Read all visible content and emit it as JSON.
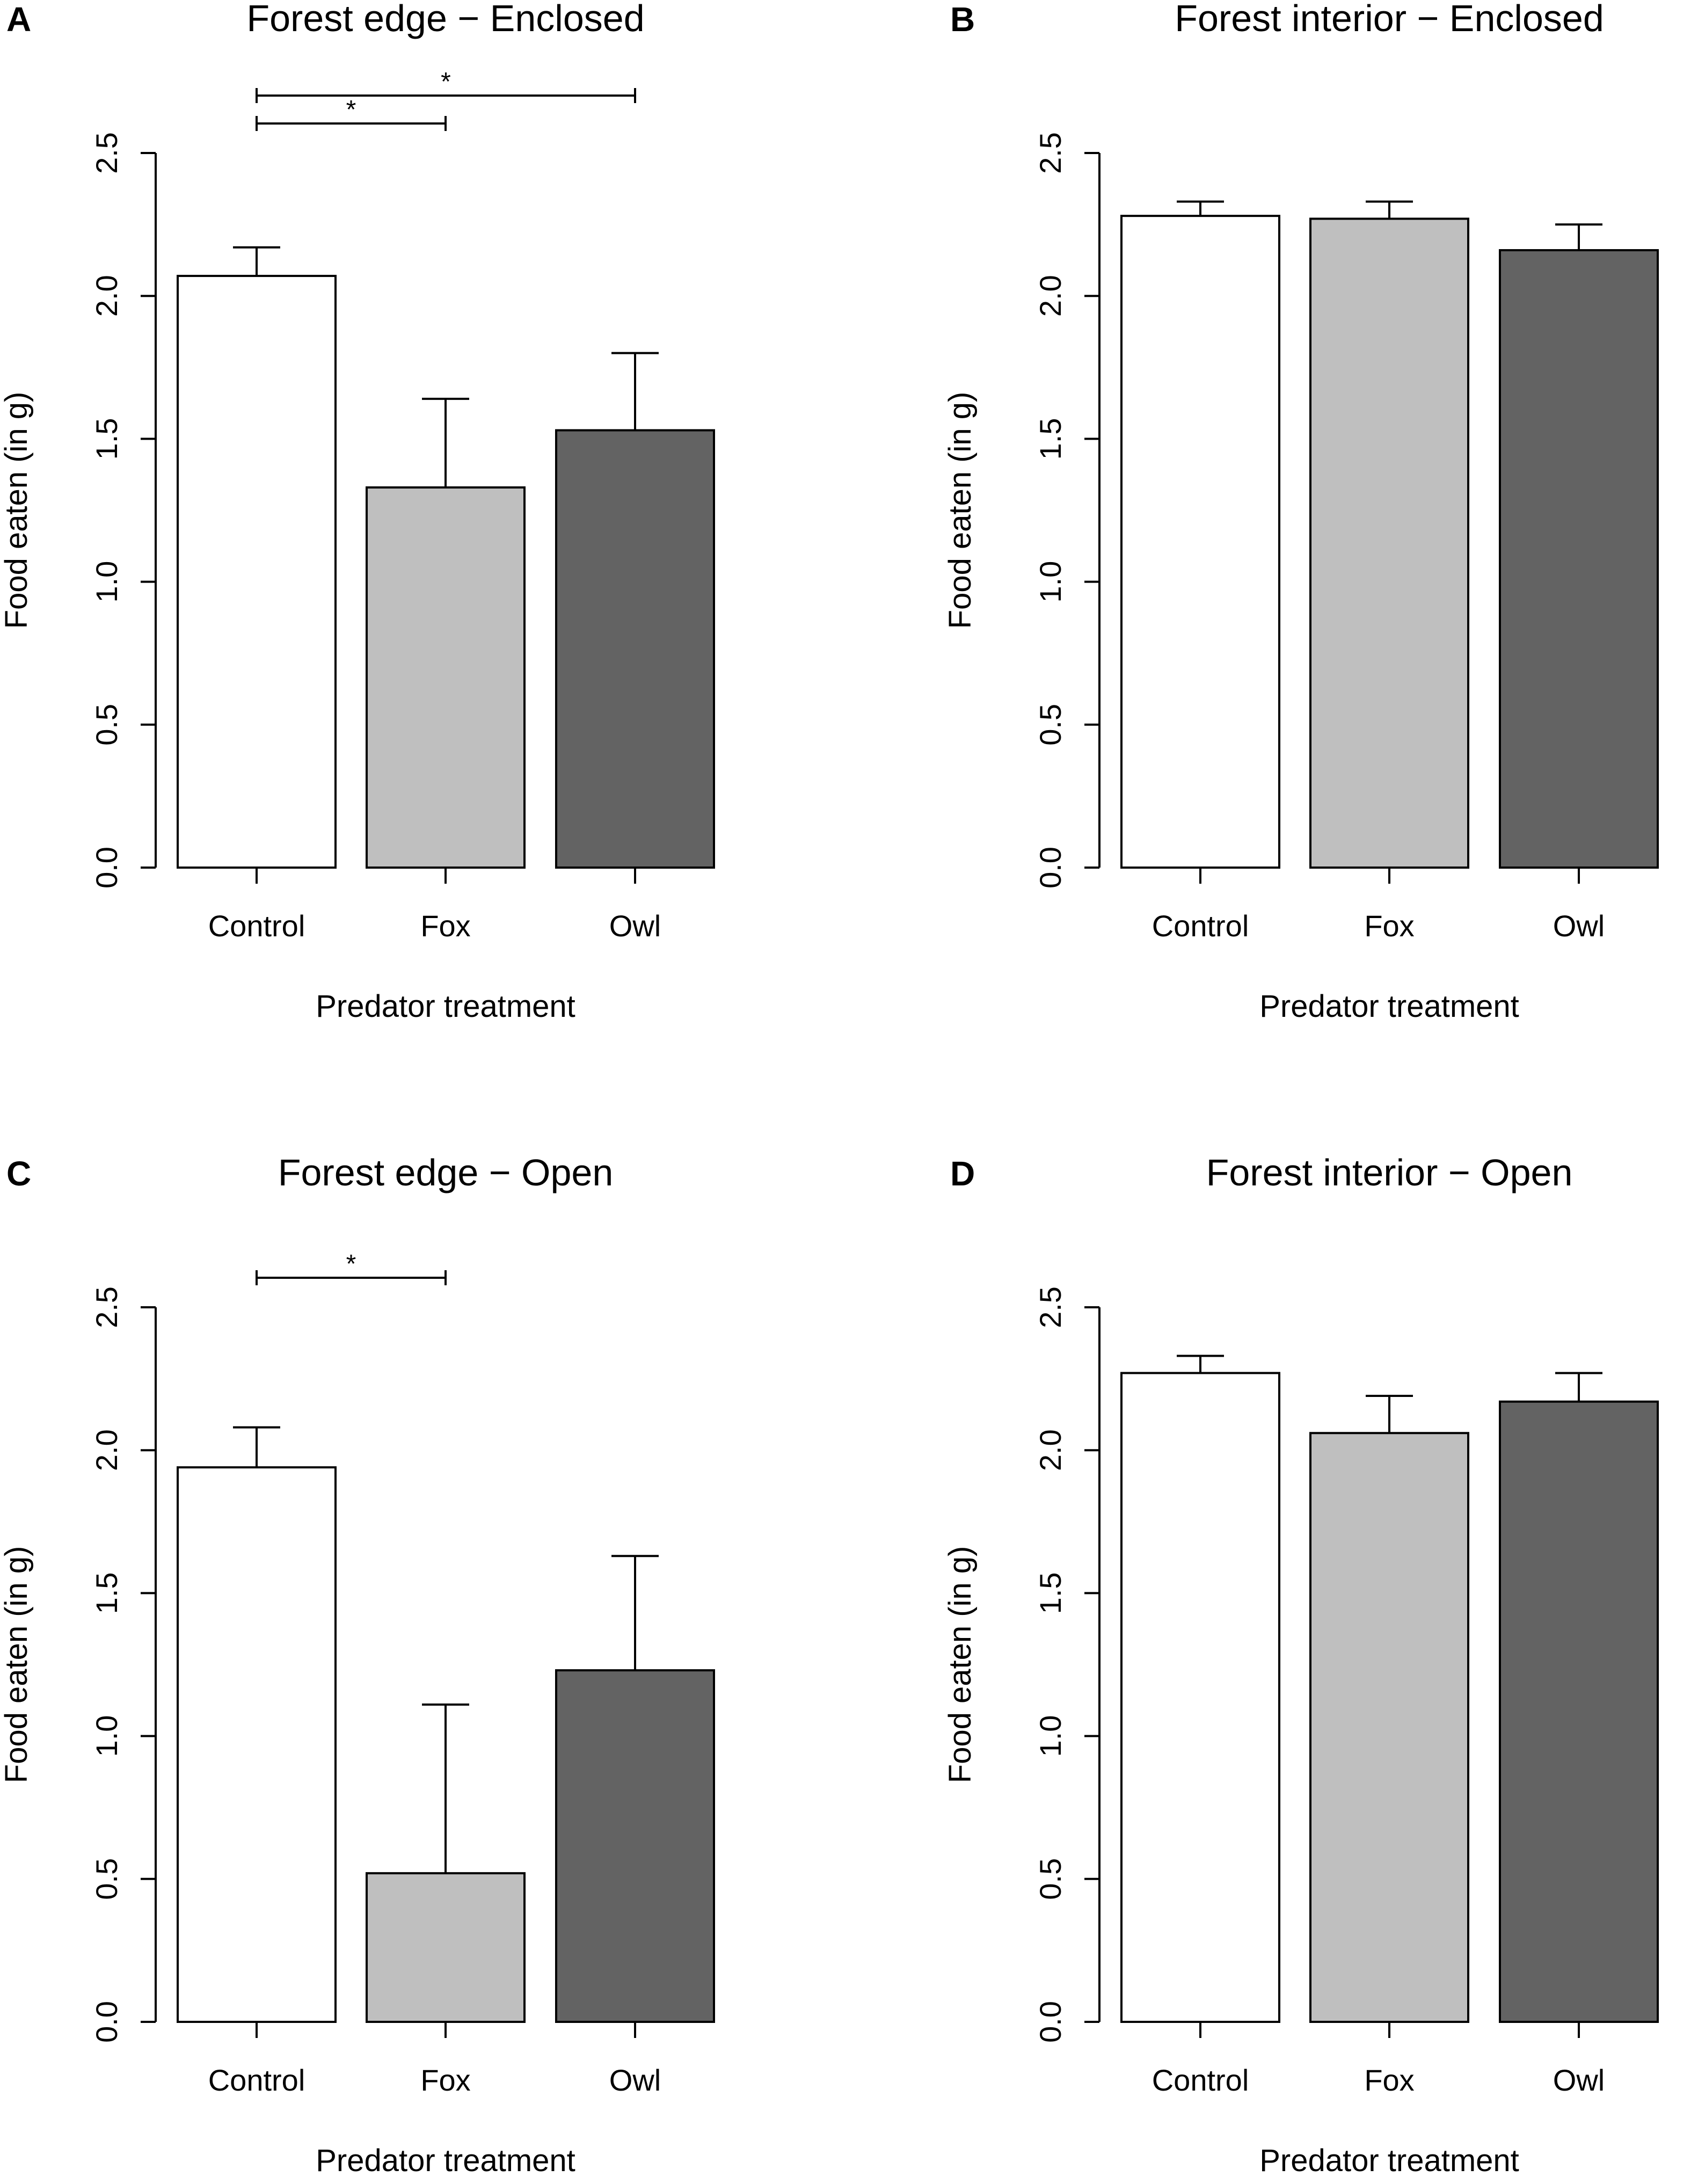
{
  "figure": {
    "bar_colors": [
      "#ffffff",
      "#bfbfbf",
      "#636363"
    ],
    "axis_color": "#000000"
  },
  "chart_data": [
    {
      "panel_letter": "A",
      "type": "bar",
      "title": "Forest edge − Enclosed",
      "xlabel": "Predator treatment",
      "ylabel": "Food eaten (in g)",
      "categories": [
        "Control",
        "Fox",
        "Owl"
      ],
      "values": [
        2.07,
        1.33,
        1.53
      ],
      "errors": [
        0.1,
        0.31,
        0.27
      ],
      "ylim": [
        0,
        2.5
      ],
      "yticks": [
        "0.0",
        "0.5",
        "1.0",
        "1.5",
        "2.0",
        "2.5"
      ],
      "significance": [
        {
          "from": 0,
          "to": 1,
          "label": "*",
          "level": 0
        },
        {
          "from": 0,
          "to": 2,
          "label": "*",
          "level": 1
        }
      ]
    },
    {
      "panel_letter": "B",
      "type": "bar",
      "title": "Forest interior − Enclosed",
      "xlabel": "Predator treatment",
      "ylabel": "Food eaten (in g)",
      "categories": [
        "Control",
        "Fox",
        "Owl"
      ],
      "values": [
        2.28,
        2.27,
        2.16
      ],
      "errors": [
        0.05,
        0.06,
        0.09
      ],
      "ylim": [
        0,
        2.5
      ],
      "yticks": [
        "0.0",
        "0.5",
        "1.0",
        "1.5",
        "2.0",
        "2.5"
      ],
      "significance": []
    },
    {
      "panel_letter": "C",
      "type": "bar",
      "title": "Forest edge − Open",
      "xlabel": "Predator treatment",
      "ylabel": "Food eaten (in g)",
      "categories": [
        "Control",
        "Fox",
        "Owl"
      ],
      "values": [
        1.94,
        0.52,
        1.23
      ],
      "errors": [
        0.14,
        0.59,
        0.4
      ],
      "ylim": [
        0,
        2.5
      ],
      "yticks": [
        "0.0",
        "0.5",
        "1.0",
        "1.5",
        "2.0",
        "2.5"
      ],
      "significance": [
        {
          "from": 0,
          "to": 1,
          "label": "*",
          "level": 0
        }
      ]
    },
    {
      "panel_letter": "D",
      "type": "bar",
      "title": "Forest interior − Open",
      "xlabel": "Predator treatment",
      "ylabel": "Food eaten (in g)",
      "categories": [
        "Control",
        "Fox",
        "Owl"
      ],
      "values": [
        2.27,
        2.06,
        2.17
      ],
      "errors": [
        0.06,
        0.13,
        0.1
      ],
      "ylim": [
        0,
        2.5
      ],
      "yticks": [
        "0.0",
        "0.5",
        "1.0",
        "1.5",
        "2.0",
        "2.5"
      ],
      "significance": []
    }
  ]
}
